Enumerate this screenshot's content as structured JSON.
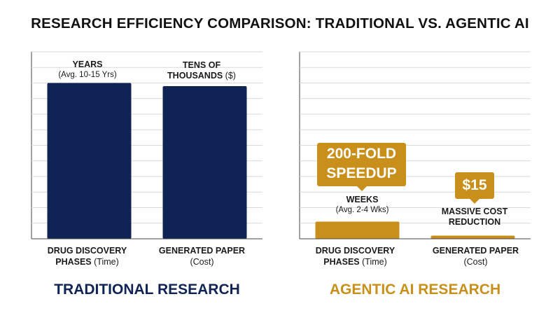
{
  "title": "RESEARCH EFFICIENCY COMPARISON: TRADITIONAL VS. AGENTIC AI",
  "colors": {
    "traditional": "#0f2455",
    "agentic": "#c8901a",
    "grid": "#d9d9d9"
  },
  "chart_data": [
    {
      "type": "bar",
      "title": "TRADITIONAL RESEARCH",
      "categories": [
        {
          "bold": "DRUG DISCOVERY",
          "line2_bold": "PHASES",
          "line2_rest": " (Time)"
        },
        {
          "bold": "GENERATED PAPER",
          "line2_bold": "",
          "line2_rest": "(Cost)"
        }
      ],
      "values": [
        100,
        98
      ],
      "bar_labels": [
        {
          "main": "YEARS",
          "sub": "(Avg. 10-15 Yrs)"
        },
        {
          "main": "TENS OF",
          "main2": "THOUSANDS",
          "main2_rest": " ($)"
        }
      ],
      "ylim": [
        0,
        120
      ],
      "grid": true,
      "color": "#0f2455"
    },
    {
      "type": "bar",
      "title": "AGENTIC AI RESEARCH",
      "categories": [
        {
          "bold": "DRUG DISCOVERY",
          "line2_bold": "PHASES",
          "line2_rest": " (Time)"
        },
        {
          "bold": "GENERATED PAPER",
          "line2_bold": "",
          "line2_rest": "(Cost)"
        }
      ],
      "values": [
        11,
        2
      ],
      "bar_labels": [
        {
          "main": "WEEKS",
          "sub": "(Avg. 2-4 Wks)"
        },
        {
          "main": "MASSIVE COST",
          "main2": "REDUCTION"
        }
      ],
      "callouts": [
        "200-FOLD SPEEDUP",
        "$15"
      ],
      "ylim": [
        0,
        120
      ],
      "grid": true,
      "color": "#c8901a"
    }
  ]
}
